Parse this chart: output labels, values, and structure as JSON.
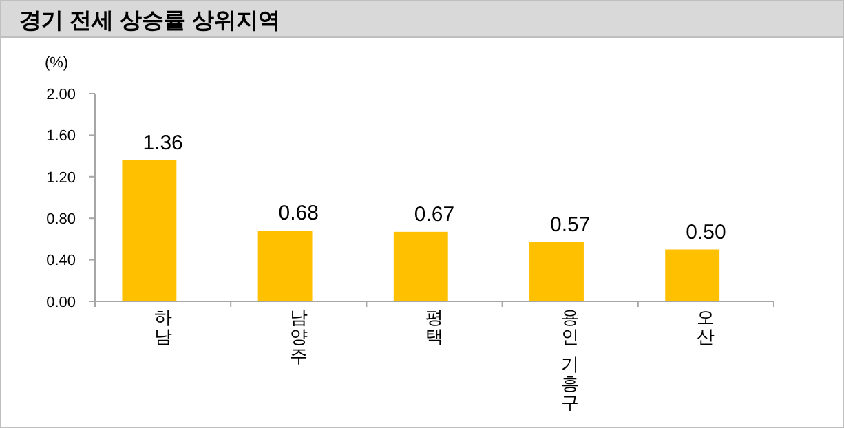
{
  "chart_data": {
    "type": "bar",
    "title": "경기 전세 상승률 상위지역",
    "ylabel": "(%)",
    "categories": [
      "하남",
      "남양주",
      "평택",
      "용인 기흥구",
      "오산"
    ],
    "values": [
      1.36,
      0.68,
      0.67,
      0.57,
      0.5
    ],
    "color": "#ffc000",
    "value_labels": [
      "1.36",
      "0.68",
      "0.67",
      "0.57",
      "0.50"
    ],
    "ylim": [
      0,
      2
    ],
    "yticks": [
      {
        "value": 0,
        "label": "0.00"
      },
      {
        "value": 0.4,
        "label": "0.40"
      },
      {
        "value": 0.8,
        "label": "0.80"
      },
      {
        "value": 1.2,
        "label": "1.20"
      },
      {
        "value": 1.6,
        "label": "1.60"
      },
      {
        "value": 2,
        "label": "2.00"
      }
    ]
  }
}
